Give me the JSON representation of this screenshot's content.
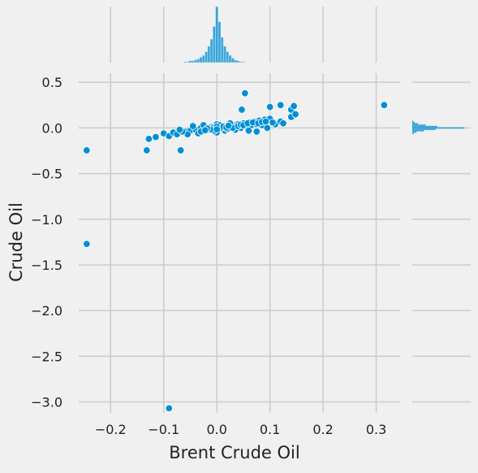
{
  "chart_data": {
    "type": "scatter",
    "xlabel": "Brent Crude Oil",
    "ylabel": "Crude Oil",
    "xlim": [
      -0.26,
      0.345
    ],
    "ylim": [
      -3.12,
      0.6
    ],
    "xticks": [
      -0.2,
      -0.1,
      0.0,
      0.1,
      0.2,
      0.3
    ],
    "yticks": [
      0.5,
      0.0,
      -0.5,
      -1.0,
      -1.5,
      -2.0,
      -2.5,
      -3.0
    ],
    "xtick_labels": [
      "−0.2",
      "−0.1",
      "0.0",
      "0.1",
      "0.2",
      "0.3"
    ],
    "ytick_labels": [
      "0.5",
      "0.0",
      "−0.5",
      "−1.0",
      "−1.5",
      "−2.0",
      "−2.5",
      "−3.0"
    ],
    "grid": true,
    "marginal_histograms": true,
    "colors": {
      "points": "#008fd5",
      "marginal": "#008fd5",
      "background": "#f0f0f0",
      "grid": "#cbcbcb"
    },
    "points": [
      [
        -0.245,
        -0.245
      ],
      [
        -0.245,
        -1.27
      ],
      [
        -0.09,
        -3.07
      ],
      [
        0.315,
        0.25
      ],
      [
        -0.132,
        -0.245
      ],
      [
        -0.128,
        -0.12
      ],
      [
        -0.068,
        -0.245
      ],
      [
        -0.115,
        -0.1
      ],
      [
        -0.1,
        -0.06
      ],
      [
        -0.09,
        -0.09
      ],
      [
        -0.082,
        -0.05
      ],
      [
        -0.075,
        -0.07
      ],
      [
        -0.06,
        -0.04
      ],
      [
        -0.05,
        -0.03
      ],
      [
        -0.04,
        -0.02
      ],
      [
        -0.03,
        0.0
      ],
      [
        -0.02,
        -0.01
      ],
      [
        -0.01,
        0.01
      ],
      [
        0.0,
        0.0
      ],
      [
        0.01,
        0.01
      ],
      [
        0.02,
        0.02
      ],
      [
        0.03,
        0.03
      ],
      [
        0.04,
        0.04
      ],
      [
        0.05,
        0.05
      ],
      [
        0.06,
        0.06
      ],
      [
        0.07,
        0.07
      ],
      [
        0.08,
        0.08
      ],
      [
        0.09,
        0.09
      ],
      [
        -0.045,
        0.02
      ],
      [
        -0.035,
        -0.06
      ],
      [
        -0.055,
        -0.07
      ],
      [
        -0.025,
        0.03
      ],
      [
        0.015,
        -0.03
      ],
      [
        0.035,
        -0.02
      ],
      [
        0.045,
        0.0
      ],
      [
        0.0,
        0.04
      ],
      [
        0.0,
        -0.05
      ],
      [
        0.005,
        0.03
      ],
      [
        -0.005,
        -0.03
      ],
      [
        0.025,
        0.05
      ],
      [
        0.055,
        0.02
      ],
      [
        0.065,
        0.03
      ],
      [
        0.075,
        0.04
      ],
      [
        0.085,
        0.03
      ],
      [
        0.1,
        0.1
      ],
      [
        0.11,
        0.04
      ],
      [
        0.12,
        0.07
      ],
      [
        0.125,
        0.05
      ],
      [
        0.047,
        0.2
      ],
      [
        0.053,
        0.38
      ],
      [
        0.1,
        0.23
      ],
      [
        0.12,
        0.25
      ],
      [
        0.14,
        0.2
      ],
      [
        0.145,
        0.24
      ],
      [
        0.14,
        0.12
      ],
      [
        0.148,
        0.15
      ],
      [
        0.06,
        -0.03
      ],
      [
        0.075,
        -0.04
      ],
      [
        0.095,
        0.0
      ],
      [
        -0.015,
        -0.02
      ],
      [
        0.02,
        -0.01
      ],
      [
        0.03,
        0.0
      ],
      [
        0.04,
        0.02
      ],
      [
        -0.03,
        -0.04
      ],
      [
        -0.065,
        -0.04
      ],
      [
        -0.07,
        -0.02
      ],
      [
        0.008,
        0.0
      ],
      [
        -0.008,
        0.0
      ],
      [
        0.012,
        0.015
      ],
      [
        -0.012,
        -0.015
      ],
      [
        0.018,
        0.005
      ],
      [
        -0.018,
        -0.005
      ],
      [
        0.0,
        0.015
      ],
      [
        0.0,
        -0.015
      ],
      [
        0.022,
        0.025
      ],
      [
        -0.022,
        -0.025
      ],
      [
        0.045,
        0.035
      ],
      [
        0.05,
        0.03
      ],
      [
        0.058,
        0.05
      ],
      [
        0.068,
        0.06
      ],
      [
        0.078,
        0.05
      ],
      [
        0.085,
        0.065
      ],
      [
        0.092,
        0.07
      ],
      [
        0.105,
        0.06
      ]
    ],
    "x_marginal_bins": [
      [
        -0.06,
        1
      ],
      [
        -0.055,
        1
      ],
      [
        -0.05,
        2
      ],
      [
        -0.045,
        2
      ],
      [
        -0.04,
        3
      ],
      [
        -0.035,
        4
      ],
      [
        -0.03,
        6
      ],
      [
        -0.025,
        8
      ],
      [
        -0.02,
        12
      ],
      [
        -0.015,
        18
      ],
      [
        -0.01,
        26
      ],
      [
        -0.005,
        40
      ],
      [
        0.0,
        62
      ],
      [
        0.005,
        45
      ],
      [
        0.01,
        28
      ],
      [
        0.015,
        18
      ],
      [
        0.02,
        12
      ],
      [
        0.025,
        8
      ],
      [
        0.03,
        5
      ],
      [
        0.035,
        3
      ],
      [
        0.04,
        2
      ],
      [
        0.045,
        1
      ],
      [
        0.05,
        1
      ]
    ],
    "y_marginal_bins": [
      [
        -0.06,
        2
      ],
      [
        -0.045,
        5
      ],
      [
        -0.03,
        14
      ],
      [
        -0.015,
        28
      ],
      [
        0.0,
        62
      ],
      [
        0.015,
        30
      ],
      [
        0.03,
        16
      ],
      [
        0.045,
        7
      ],
      [
        0.06,
        3
      ],
      [
        0.075,
        1
      ]
    ]
  }
}
